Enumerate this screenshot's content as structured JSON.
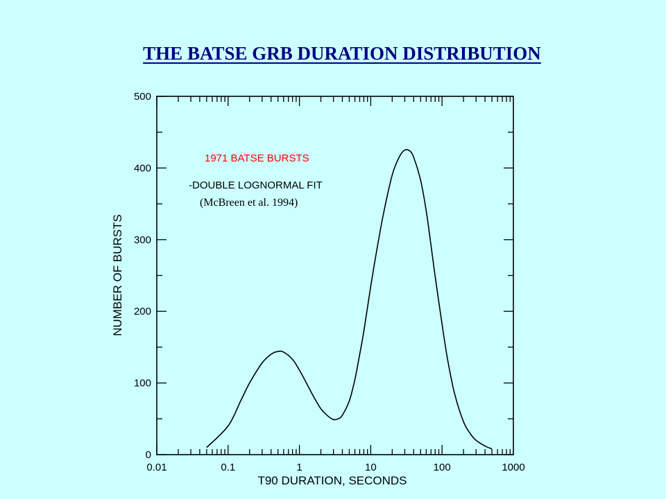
{
  "slide": {
    "title": "THE BATSE GRB DURATION DISTRIBUTION"
  },
  "chart_data": {
    "type": "line",
    "xlabel": "T90 DURATION, SECONDS",
    "ylabel": "NUMBER OF BURSTS",
    "xscale": "log",
    "xlim": [
      0.01,
      1000
    ],
    "ylim": [
      0,
      500
    ],
    "x_ticks": [
      {
        "value": 0.01,
        "label": "0.01"
      },
      {
        "value": 0.1,
        "label": "0.1"
      },
      {
        "value": 1,
        "label": "1"
      },
      {
        "value": 10,
        "label": "10"
      },
      {
        "value": 100,
        "label": "100"
      },
      {
        "value": 1000,
        "label": "1000"
      }
    ],
    "y_ticks": [
      {
        "value": 0,
        "label": "0"
      },
      {
        "value": 100,
        "label": "100"
      },
      {
        "value": 200,
        "label": "200"
      },
      {
        "value": 300,
        "label": "300"
      },
      {
        "value": 400,
        "label": "400"
      },
      {
        "value": 500,
        "label": "500"
      }
    ],
    "grid": false,
    "annotations": [
      {
        "text": "1971 BATSE BURSTS",
        "color": "#ff0000"
      },
      {
        "text": "-DOUBLE LOGNORMAL FIT",
        "color": "#000000"
      },
      {
        "text": "(McBreen et al. 1994)",
        "color": "#000000"
      }
    ],
    "series": [
      {
        "color": "#000000",
        "x": [
          0.05,
          0.1,
          0.15,
          0.2,
          0.3,
          0.4,
          0.5,
          0.6,
          0.8,
          1.0,
          1.3,
          1.6,
          2.0,
          2.5,
          3.0,
          3.5,
          4.0,
          5.0,
          6.0,
          7.0,
          8.0,
          10,
          12,
          15,
          20,
          25,
          30,
          35,
          40,
          50,
          60,
          70,
          80,
          100,
          120,
          150,
          200,
          250,
          300,
          400,
          500
        ],
        "y": [
          10,
          40,
          75,
          100,
          128,
          140,
          144,
          143,
          133,
          118,
          97,
          80,
          64,
          54,
          49,
          50,
          55,
          75,
          105,
          140,
          172,
          235,
          282,
          335,
          390,
          415,
          425,
          424,
          415,
          383,
          340,
          292,
          249,
          182,
          132,
          85,
          46,
          29,
          20,
          12,
          8
        ]
      }
    ]
  }
}
